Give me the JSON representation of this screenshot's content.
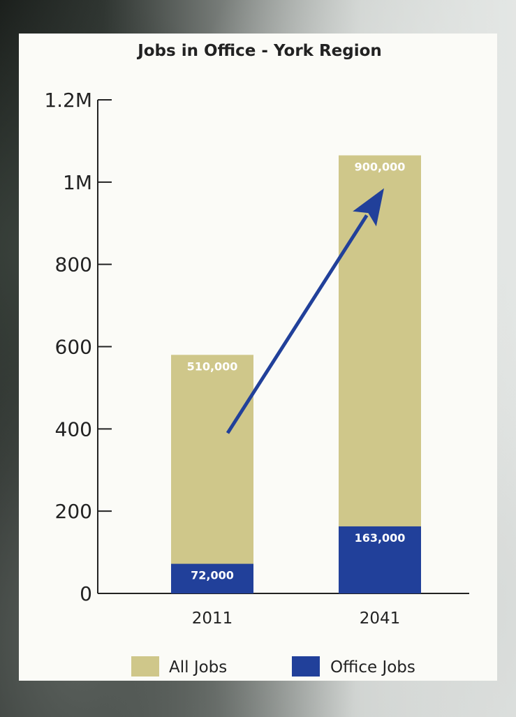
{
  "chart_data": {
    "type": "bar",
    "stacked": false,
    "overlap": true,
    "title": "Jobs in Office - York Region",
    "categories": [
      "2011",
      "2041"
    ],
    "y_ticks": [
      "0",
      "200",
      "400",
      "600",
      "800",
      "1M",
      "1.2M"
    ],
    "ylim": [
      0,
      1200
    ],
    "series": [
      {
        "name": "All Jobs",
        "color": "#cfc78a",
        "values": [
          580,
          1065
        ],
        "labels": [
          "510,000",
          "900,000"
        ]
      },
      {
        "name": "Office Jobs",
        "color": "#21409a",
        "values": [
          72,
          163
        ],
        "labels": [
          "72,000",
          "163,000"
        ]
      }
    ],
    "arrow": {
      "from": [
        0,
        400
      ],
      "to": [
        1,
        985
      ],
      "color": "#21409a"
    },
    "legend": {
      "position": "bottom"
    }
  }
}
